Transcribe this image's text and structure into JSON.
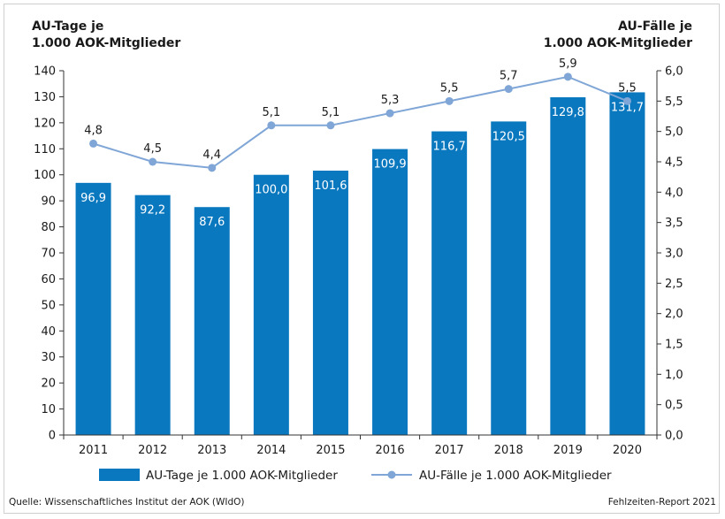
{
  "chart_data": {
    "type": "bar",
    "categories": [
      "2011",
      "2012",
      "2013",
      "2014",
      "2015",
      "2016",
      "2017",
      "2018",
      "2019",
      "2020"
    ],
    "y_left_title_lines": [
      "AU-Tage je",
      "1.000 AOK-Mitglieder"
    ],
    "y_right_title_lines": [
      "AU-Fälle je",
      "1.000 AOK-Mitglieder"
    ],
    "y_left_lim": [
      0,
      140
    ],
    "y_left_ticks": [
      0,
      10,
      20,
      30,
      40,
      50,
      60,
      70,
      80,
      90,
      100,
      110,
      120,
      130,
      140
    ],
    "y_left_tick_labels": [
      "0",
      "10",
      "20",
      "30",
      "40",
      "50",
      "60",
      "70",
      "80",
      "90",
      "100",
      "110",
      "120",
      "130",
      "140"
    ],
    "y_right_lim": [
      0,
      6
    ],
    "y_right_ticks": [
      0,
      0.5,
      1,
      1.5,
      2,
      2.5,
      3,
      3.5,
      4,
      4.5,
      5,
      5.5,
      6
    ],
    "y_right_tick_labels": [
      "0,0",
      "0,5",
      "1,0",
      "1,5",
      "2,0",
      "2,5",
      "3,0",
      "3,5",
      "4,0",
      "4,5",
      "5,0",
      "5,5",
      "6,0"
    ],
    "grid": false,
    "legend_position": "bottom",
    "series": [
      {
        "name": "AU-Tage je 1.000 AOK-Mitglieder",
        "type": "bar",
        "axis": "left",
        "color": "#0a78bf",
        "values": [
          96.9,
          92.2,
          87.6,
          100.0,
          101.6,
          109.9,
          116.7,
          120.5,
          129.8,
          131.7
        ],
        "labels": [
          "96,9",
          "92,2",
          "87,6",
          "100,0",
          "101,6",
          "109,9",
          "116,7",
          "120,5",
          "129,8",
          "131,7"
        ]
      },
      {
        "name": "AU-Fälle je 1.000 AOK-Mitglieder",
        "type": "line",
        "axis": "right",
        "color": "#7fa6d6",
        "values": [
          4.8,
          4.5,
          4.4,
          5.1,
          5.1,
          5.3,
          5.5,
          5.7,
          5.9,
          5.5
        ],
        "labels": [
          "4,8",
          "4,5",
          "4,4",
          "5,1",
          "5,1",
          "5,3",
          "5,5",
          "5,7",
          "5,9",
          "5,5"
        ]
      }
    ]
  },
  "footer": {
    "source": "Quelle: Wissenschaftliches Institut der AOK (WIdO)",
    "report": "Fehlzeiten-Report 2021"
  }
}
